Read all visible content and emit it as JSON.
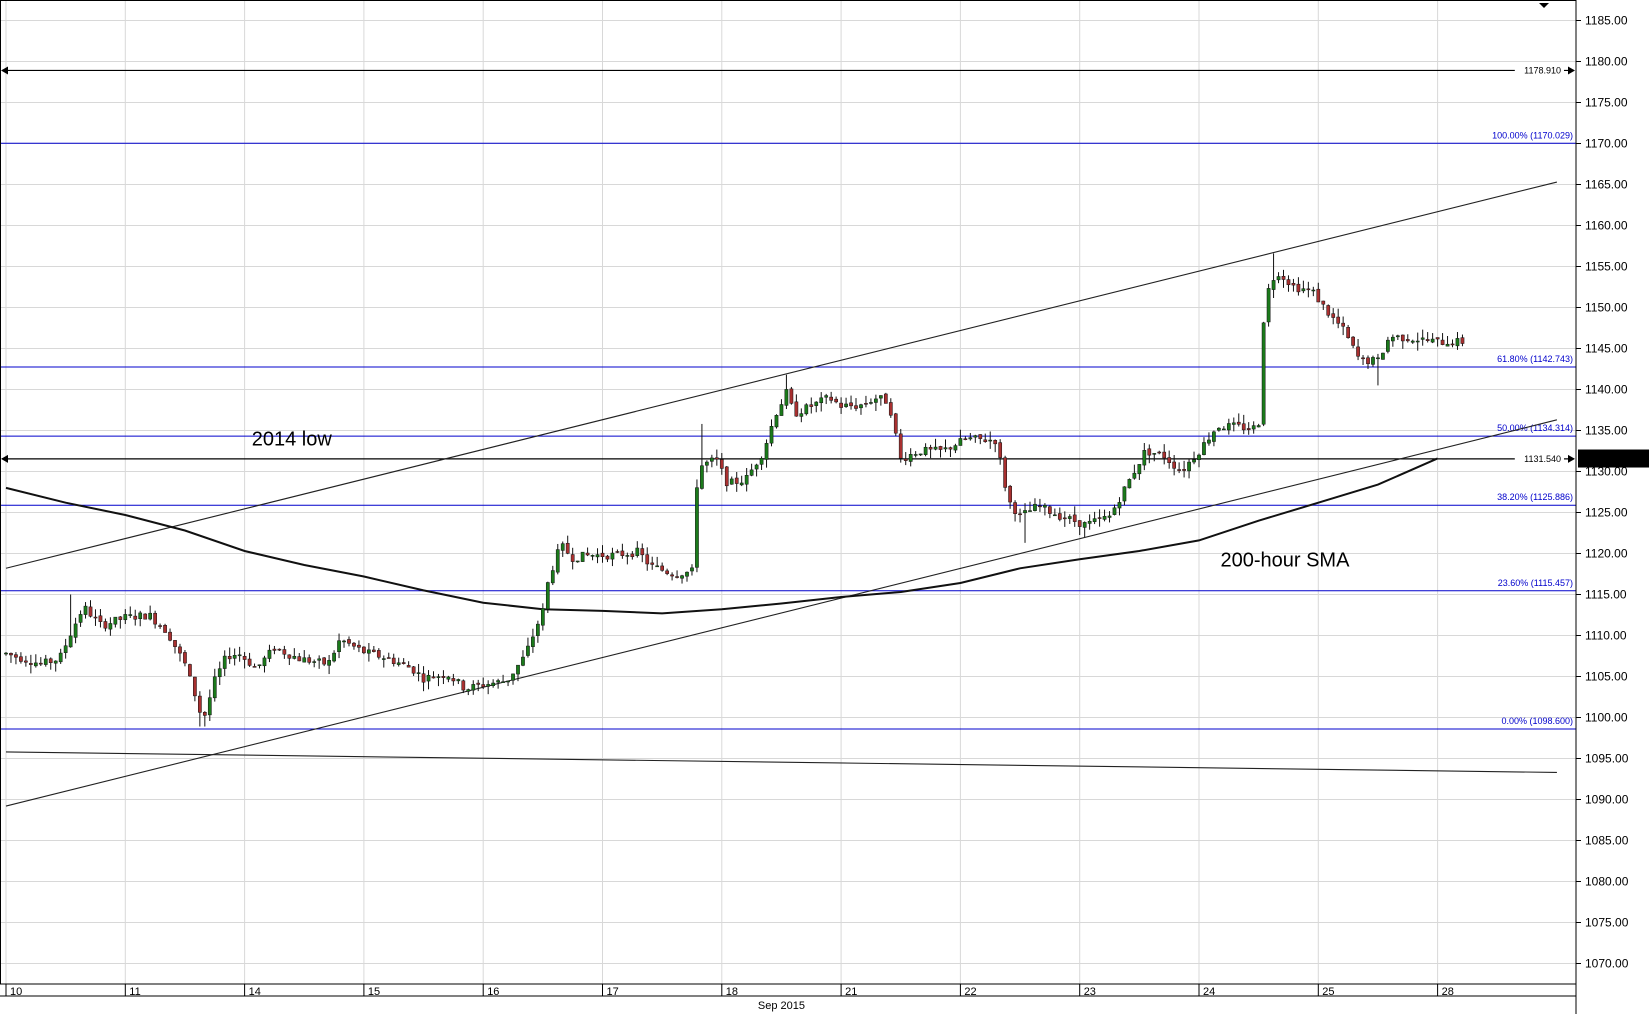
{
  "chart_data": {
    "type": "candlestick",
    "y_range": [
      1067.5,
      1187.5
    ],
    "y_ticks": [
      "1185.00",
      "1180.00",
      "1175.00",
      "1170.00",
      "1165.00",
      "1160.00",
      "1155.00",
      "1150.00",
      "1145.00",
      "1140.00",
      "1135.00",
      "1130.00",
      "1125.00",
      "1120.00",
      "1115.00",
      "1110.00",
      "1105.00",
      "1100.00",
      "1095.00",
      "1090.00",
      "1085.00",
      "1080.00",
      "1075.00",
      "1070.00"
    ],
    "x_day_labels": [
      "10",
      "11",
      "14",
      "15",
      "16",
      "17",
      "18",
      "21",
      "22",
      "23",
      "24",
      "25",
      "28"
    ],
    "x_month_label": "Sep 2015",
    "current_price": "1131.583",
    "colors": {
      "up": "#1b7a1b",
      "down": "#a83030",
      "fib": "#0000cc",
      "line": "#000000",
      "grid": "#d8d8d8",
      "price_box": "#000000"
    },
    "fib_levels": [
      {
        "value": 1170.029,
        "label": "100.00% (1170.029)"
      },
      {
        "value": 1142.743,
        "label": "61.80% (1142.743)"
      },
      {
        "value": 1134.314,
        "label": "50.00% (1134.314)"
      },
      {
        "value": 1125.886,
        "label": "38.20% (1125.886)"
      },
      {
        "value": 1115.457,
        "label": "23.60% (1115.457)"
      },
      {
        "value": 1098.6,
        "label": "0.00% (1098.600)"
      }
    ],
    "horizontal_lines": [
      {
        "value": 1178.91,
        "label": "1178.910"
      },
      {
        "value": 1131.54,
        "label": "1131.540"
      }
    ],
    "annotations": [
      {
        "text": "2014 low",
        "day": 2.06,
        "value": 1133.2
      },
      {
        "text": "200-hour SMA",
        "day": 10.18,
        "value": 1118.4
      }
    ],
    "trendlines": [
      {
        "name": "upper-channel",
        "points": [
          [
            0,
            1118.2
          ],
          [
            13.0,
            1165.3
          ]
        ]
      },
      {
        "name": "lower-channel",
        "points": [
          [
            0,
            1089.2
          ],
          [
            13.0,
            1136.3
          ]
        ]
      },
      {
        "name": "long-term-support",
        "points": [
          [
            0,
            1095.8
          ],
          [
            13.0,
            1093.3
          ]
        ]
      }
    ],
    "sma_200": [
      [
        0,
        1128.0
      ],
      [
        0.5,
        1126.2
      ],
      [
        1.0,
        1124.7
      ],
      [
        1.5,
        1122.8
      ],
      [
        2.0,
        1120.3
      ],
      [
        2.5,
        1118.6
      ],
      [
        3.0,
        1117.2
      ],
      [
        3.5,
        1115.5
      ],
      [
        4.0,
        1114.0
      ],
      [
        4.5,
        1113.2
      ],
      [
        5.0,
        1113.0
      ],
      [
        5.5,
        1112.7
      ],
      [
        6.0,
        1113.2
      ],
      [
        6.5,
        1113.9
      ],
      [
        7.0,
        1114.7
      ],
      [
        7.5,
        1115.3
      ],
      [
        8.0,
        1116.4
      ],
      [
        8.5,
        1118.2
      ],
      [
        9.0,
        1119.3
      ],
      [
        9.5,
        1120.3
      ],
      [
        10.0,
        1121.6
      ],
      [
        10.5,
        1124.0
      ],
      [
        11.0,
        1126.2
      ],
      [
        11.5,
        1128.4
      ],
      [
        12.0,
        1131.6
      ]
    ],
    "waypoints": [
      [
        0.0,
        1107.8
      ],
      [
        0.3,
        1106.5
      ],
      [
        0.45,
        1107.2
      ],
      [
        0.55,
        1110.5
      ],
      [
        0.65,
        1113.5
      ],
      [
        0.8,
        1111.2
      ],
      [
        1.0,
        1112.2
      ],
      [
        1.2,
        1112.5
      ],
      [
        1.35,
        1110.5
      ],
      [
        1.5,
        1106.5
      ],
      [
        1.58,
        1103.0
      ],
      [
        1.65,
        1099.5
      ],
      [
        1.75,
        1104.5
      ],
      [
        1.85,
        1107.5
      ],
      [
        1.95,
        1107.8
      ],
      [
        2.1,
        1106.0
      ],
      [
        2.25,
        1108.5
      ],
      [
        2.45,
        1107.2
      ],
      [
        2.7,
        1106.5
      ],
      [
        2.8,
        1109.5
      ],
      [
        3.0,
        1108.0
      ],
      [
        3.2,
        1107.2
      ],
      [
        3.4,
        1106.0
      ],
      [
        3.5,
        1104.8
      ],
      [
        3.7,
        1105.3
      ],
      [
        3.85,
        1103.5
      ],
      [
        4.0,
        1104.0
      ],
      [
        4.2,
        1104.5
      ],
      [
        4.35,
        1107.5
      ],
      [
        4.5,
        1113.0
      ],
      [
        4.55,
        1117.0
      ],
      [
        4.65,
        1121.0
      ],
      [
        4.75,
        1119.5
      ],
      [
        4.9,
        1119.8
      ],
      [
        5.1,
        1119.8
      ],
      [
        5.3,
        1120.2
      ],
      [
        5.4,
        1118.5
      ],
      [
        5.6,
        1117.5
      ],
      [
        5.75,
        1117.8
      ],
      [
        5.8,
        1130.5
      ],
      [
        5.95,
        1131.5
      ],
      [
        6.05,
        1128.5
      ],
      [
        6.2,
        1129.0
      ],
      [
        6.35,
        1132.5
      ],
      [
        6.45,
        1137.0
      ],
      [
        6.55,
        1139.8
      ],
      [
        6.6,
        1137.0
      ],
      [
        6.75,
        1138.0
      ],
      [
        6.9,
        1139.0
      ],
      [
        7.0,
        1138.0
      ],
      [
        7.15,
        1138.0
      ],
      [
        7.3,
        1139.0
      ],
      [
        7.4,
        1138.5
      ],
      [
        7.5,
        1131.5
      ],
      [
        7.65,
        1132.5
      ],
      [
        7.85,
        1132.5
      ],
      [
        8.05,
        1134.0
      ],
      [
        8.3,
        1133.8
      ],
      [
        8.4,
        1126.5
      ],
      [
        8.5,
        1124.5
      ],
      [
        8.65,
        1125.8
      ],
      [
        8.85,
        1124.5
      ],
      [
        9.05,
        1123.5
      ],
      [
        9.25,
        1124.5
      ],
      [
        9.4,
        1128.5
      ],
      [
        9.55,
        1132.5
      ],
      [
        9.7,
        1132.0
      ],
      [
        9.85,
        1130.0
      ],
      [
        10.0,
        1132.5
      ],
      [
        10.15,
        1135.5
      ],
      [
        10.3,
        1135.5
      ],
      [
        10.45,
        1135.2
      ],
      [
        10.5,
        1136.0
      ],
      [
        10.55,
        1151.0
      ],
      [
        10.65,
        1154.5
      ],
      [
        10.8,
        1152.5
      ],
      [
        10.95,
        1152.0
      ],
      [
        11.1,
        1149.0
      ],
      [
        11.2,
        1147.5
      ],
      [
        11.35,
        1143.5
      ],
      [
        11.5,
        1143.5
      ],
      [
        11.6,
        1146.5
      ],
      [
        11.8,
        1146.2
      ],
      [
        12.0,
        1145.8
      ],
      [
        12.22,
        1145.8
      ]
    ],
    "extremes": [
      {
        "day": 0.55,
        "value": 1115.0
      },
      {
        "day": 1.65,
        "value": 1098.9
      },
      {
        "day": 5.85,
        "value": 1135.8
      },
      {
        "day": 6.55,
        "value": 1141.8
      },
      {
        "day": 8.55,
        "value": 1121.3
      },
      {
        "day": 9.05,
        "value": 1122.0
      },
      {
        "day": 10.62,
        "value": 1156.6
      },
      {
        "day": 11.5,
        "value": 1140.5
      }
    ]
  }
}
